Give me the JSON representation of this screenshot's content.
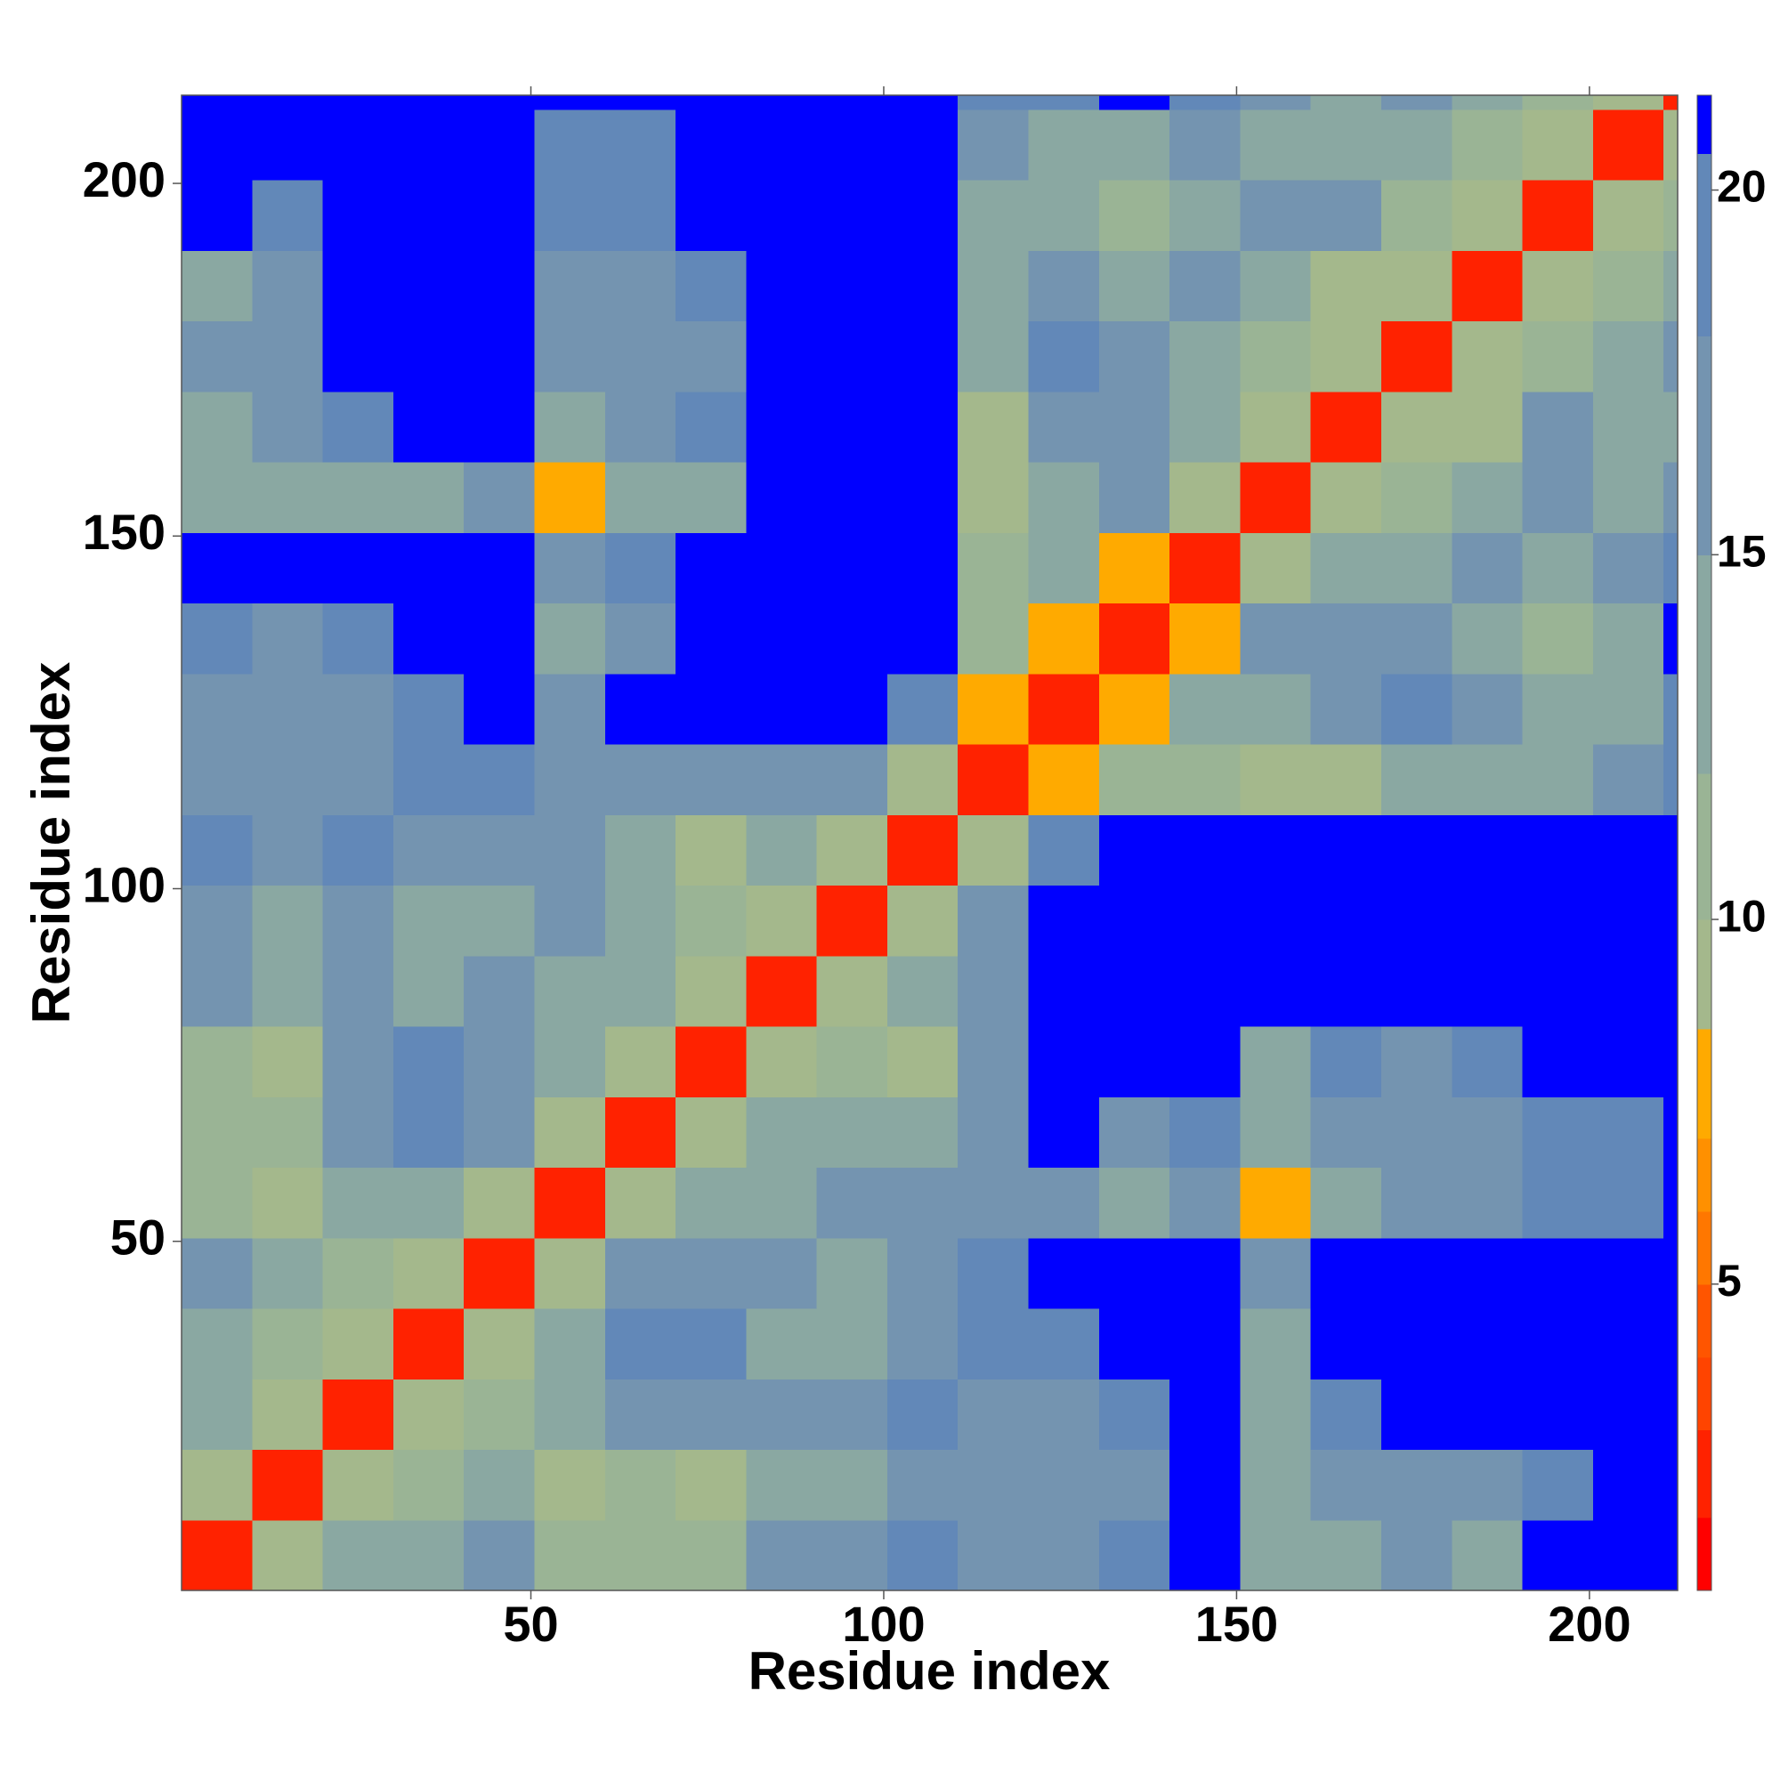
{
  "chart_data": {
    "type": "heatmap",
    "xlabel": "Residue index",
    "ylabel": "Residue index",
    "xlim": [
      0.5,
      212.5
    ],
    "ylim": [
      0.5,
      212.5
    ],
    "xticks": [
      50,
      100,
      150,
      200
    ],
    "yticks": [
      50,
      100,
      150,
      200
    ],
    "x_edges": [
      0.5,
      10.5,
      20.5,
      30.5,
      40.5,
      50.5,
      60.5,
      70.5,
      80.5,
      90.5,
      100.5,
      110.5,
      120.5,
      130.5,
      140.5,
      150.5,
      160.5,
      170.5,
      180.5,
      190.5,
      200.5,
      210.5,
      212.5
    ],
    "y_edges": [
      0.5,
      10.5,
      20.5,
      30.5,
      40.5,
      50.5,
      60.5,
      70.5,
      80.5,
      90.5,
      100.5,
      110.5,
      120.5,
      130.5,
      140.5,
      150.5,
      160.5,
      170.5,
      180.5,
      190.5,
      200.5,
      210.5,
      212.5
    ],
    "z": [
      [
        3,
        9,
        13,
        15,
        16,
        11,
        12,
        12,
        17,
        18,
        19,
        17,
        16,
        19,
        21,
        15,
        15,
        16,
        14,
        21,
        21,
        21
      ],
      [
        9,
        3,
        9,
        12,
        13,
        10,
        11,
        10,
        14,
        14,
        16,
        16,
        17,
        18,
        21,
        15,
        16,
        18,
        17,
        20,
        21,
        21
      ],
      [
        13,
        9,
        3,
        9,
        11,
        15,
        17,
        18,
        17,
        18,
        19,
        17,
        16,
        19,
        21,
        14,
        19,
        21,
        21,
        21,
        21,
        21
      ],
      [
        15,
        12,
        9,
        3,
        9,
        14,
        19,
        19,
        13,
        13,
        17,
        19,
        19,
        21,
        21,
        15,
        21,
        21,
        21,
        21,
        21,
        21
      ],
      [
        16,
        13,
        11,
        9,
        3,
        9,
        17,
        17,
        16,
        14,
        17,
        20,
        21,
        21,
        21,
        18,
        21,
        21,
        21,
        21,
        21,
        21
      ],
      [
        11,
        10,
        15,
        14,
        9,
        3,
        10,
        13,
        15,
        17,
        17,
        16,
        16,
        15,
        18,
        8,
        13,
        18,
        17,
        19,
        19,
        21
      ],
      [
        12,
        11,
        17,
        19,
        17,
        10,
        3,
        9,
        13,
        14,
        14,
        18,
        21,
        18,
        19,
        14,
        18,
        17,
        18,
        20,
        20,
        21
      ],
      [
        12,
        10,
        18,
        19,
        17,
        13,
        9,
        3,
        9,
        12,
        10,
        16,
        21,
        21,
        21,
        15,
        20,
        18,
        19,
        21,
        21,
        21
      ],
      [
        17,
        14,
        17,
        13,
        16,
        15,
        13,
        9,
        3,
        9,
        13,
        18,
        21,
        21,
        21,
        21,
        21,
        21,
        21,
        21,
        21,
        21
      ],
      [
        18,
        14,
        18,
        13,
        14,
        17,
        14,
        12,
        9,
        3,
        9,
        16,
        21,
        21,
        21,
        21,
        21,
        21,
        21,
        21,
        21,
        21
      ],
      [
        19,
        16,
        19,
        17,
        17,
        17,
        14,
        10,
        13,
        9,
        3,
        10,
        19,
        21,
        21,
        21,
        21,
        21,
        21,
        21,
        21,
        21
      ],
      [
        17,
        16,
        17,
        19,
        20,
        16,
        18,
        16,
        18,
        16,
        10,
        3,
        8,
        12,
        11,
        9,
        9,
        14,
        14,
        13,
        16,
        19
      ],
      [
        16,
        17,
        16,
        19,
        21,
        16,
        21,
        21,
        21,
        21,
        19,
        8,
        3,
        8,
        13,
        14,
        17,
        20,
        16,
        14,
        15,
        20
      ],
      [
        19,
        18,
        19,
        21,
        21,
        15,
        18,
        21,
        21,
        21,
        21,
        12,
        8,
        3,
        8,
        16,
        18,
        18,
        14,
        12,
        15,
        21
      ],
      [
        21,
        21,
        21,
        21,
        21,
        18,
        19,
        21,
        21,
        21,
        21,
        11,
        13,
        8,
        3,
        9,
        14,
        15,
        17,
        15,
        16,
        20
      ],
      [
        15,
        15,
        14,
        15,
        18,
        8,
        14,
        15,
        21,
        21,
        21,
        9,
        14,
        16,
        9,
        3,
        9,
        12,
        13,
        16,
        13,
        16
      ],
      [
        15,
        16,
        19,
        21,
        21,
        13,
        18,
        20,
        21,
        21,
        21,
        9,
        17,
        18,
        14,
        9,
        3,
        9,
        10,
        17,
        14,
        15
      ],
      [
        16,
        18,
        21,
        21,
        21,
        18,
        17,
        18,
        21,
        21,
        21,
        14,
        20,
        18,
        15,
        12,
        9,
        3,
        9,
        12,
        13,
        16
      ],
      [
        14,
        17,
        21,
        21,
        21,
        17,
        18,
        19,
        21,
        21,
        21,
        14,
        16,
        14,
        17,
        13,
        10,
        9,
        3,
        9,
        11,
        14
      ],
      [
        21,
        20,
        21,
        21,
        21,
        19,
        20,
        21,
        21,
        21,
        21,
        13,
        14,
        12,
        15,
        16,
        17,
        12,
        9,
        3,
        9,
        11
      ],
      [
        21,
        21,
        21,
        21,
        21,
        19,
        20,
        21,
        21,
        21,
        21,
        16,
        15,
        15,
        16,
        13,
        14,
        13,
        11,
        9,
        3,
        9
      ],
      [
        21,
        21,
        21,
        21,
        21,
        21,
        21,
        21,
        21,
        21,
        21,
        19,
        20,
        21,
        20,
        16,
        15,
        16,
        14,
        11,
        9,
        3
      ]
    ],
    "clim": [
      0.8,
      21.3
    ],
    "cticks": [
      5,
      10,
      15,
      20
    ],
    "levels": [
      1.8,
      3,
      4,
      5,
      6,
      7,
      8.5,
      10,
      12,
      15,
      18,
      20.5
    ],
    "colors": [
      "#ff0000",
      "#ff2200",
      "#ff4400",
      "#ff5500",
      "#ff7700",
      "#ff9000",
      "#ffaa00",
      "#a4b88c",
      "#9ab495",
      "#8aa8a2",
      "#7494b0",
      "#6288b8",
      "#0000ff"
    ]
  }
}
